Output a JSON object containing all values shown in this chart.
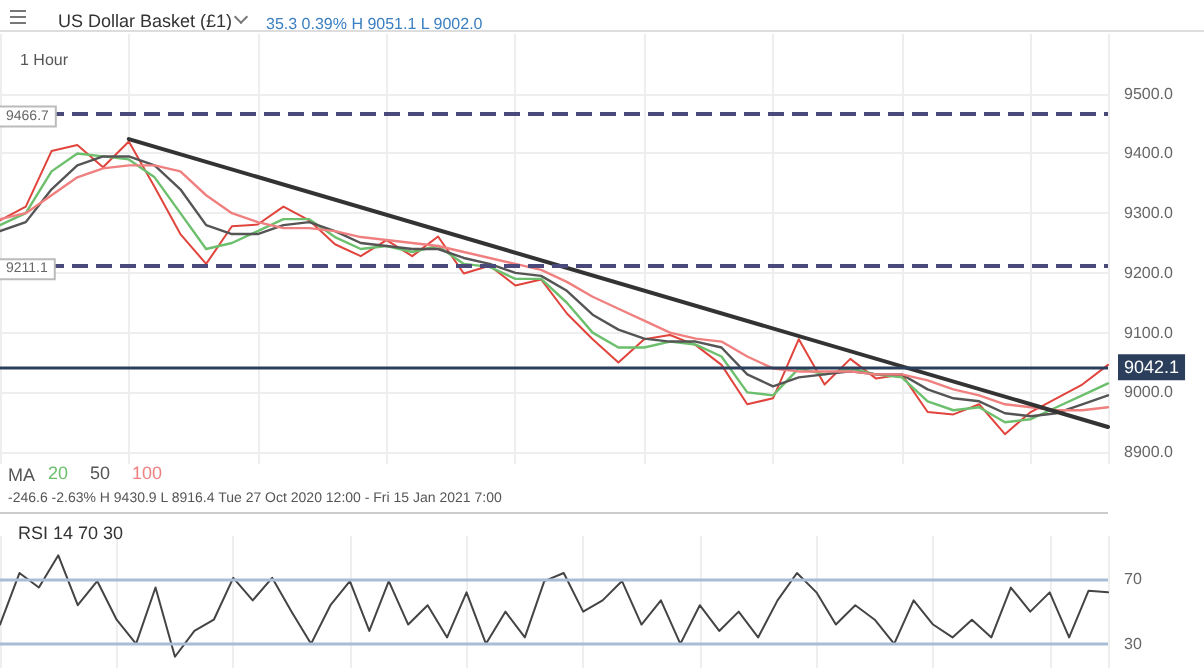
{
  "chart_data": [
    {
      "type": "line",
      "title": "US Dollar Basket (£1)",
      "subtitle": "35.3 0.39% H 9051.1 L 9002.0",
      "legend_title": "MA",
      "annotations": [
        "1 Hour",
        "-246.6 -2.63% H 9430.9 L 8916.4 Tue 27 Oct 2020 12:00 - Fri 15 Jan 2021 7:00"
      ],
      "categories": [
        null,
        null,
        null,
        null,
        null,
        null,
        null,
        null,
        null,
        null,
        null,
        null,
        null,
        null,
        null,
        null,
        null,
        null,
        null,
        null,
        null,
        null,
        null,
        null,
        null,
        null,
        null,
        null,
        null,
        null,
        null,
        null,
        null,
        null,
        null,
        null,
        null,
        null,
        null,
        null,
        null,
        null,
        null,
        null
      ],
      "series": [
        {
          "color": "#e0443c",
          "values": [
            9288,
            9311,
            9404,
            9414,
            9377,
            9420,
            9344,
            9265,
            9215,
            9278,
            9281,
            9311,
            9288,
            9248,
            9228,
            9255,
            9228,
            9261,
            9199,
            9212,
            9179,
            9189,
            9132,
            9089,
            9050,
            9089,
            9096,
            9079,
            9046,
            8980,
            8990,
            9089,
            9013,
            9056,
            9023,
            9030,
            8967,
            8963,
            8980,
            8930,
            8967,
            8990,
            9013,
            9046
          ]
        },
        {
          "name": "20",
          "color": "#6cbf6c",
          "values": [
            9280,
            9300,
            9370,
            9400,
            9395,
            9390,
            9360,
            9300,
            9240,
            9250,
            9270,
            9290,
            9290,
            9260,
            9240,
            9245,
            9235,
            9245,
            9215,
            9210,
            9190,
            9190,
            9150,
            9100,
            9075,
            9075,
            9085,
            9080,
            9060,
            9000,
            8995,
            9040,
            9030,
            9040,
            9030,
            9025,
            8985,
            8970,
            8975,
            8950,
            8955,
            8975,
            8995,
            9015
          ]
        },
        {
          "name": "50",
          "color": "#555555",
          "values": [
            9270,
            9285,
            9340,
            9380,
            9395,
            9395,
            9380,
            9340,
            9280,
            9265,
            9265,
            9280,
            9285,
            9270,
            9250,
            9245,
            9240,
            9240,
            9225,
            9215,
            9200,
            9195,
            9170,
            9130,
            9105,
            9090,
            9085,
            9085,
            9075,
            9030,
            9010,
            9025,
            9030,
            9035,
            9030,
            9030,
            9005,
            8990,
            8985,
            8965,
            8960,
            8965,
            8980,
            8995
          ]
        },
        {
          "name": "100",
          "color": "#f08080",
          "values": [
            9290,
            9300,
            9330,
            9360,
            9375,
            9380,
            9380,
            9370,
            9330,
            9300,
            9285,
            9275,
            9275,
            9270,
            9260,
            9255,
            9250,
            9245,
            9235,
            9225,
            9215,
            9205,
            9185,
            9160,
            9140,
            9120,
            9100,
            9090,
            9085,
            9060,
            9040,
            9035,
            9035,
            9035,
            9030,
            9030,
            9020,
            9005,
            8995,
            8980,
            8975,
            8970,
            8970,
            8975
          ]
        },
        {
          "color": "#333333",
          "values": [
            null,
            null,
            null,
            null,
            null,
            9424,
            null,
            null,
            null,
            null,
            null,
            null,
            null,
            null,
            null,
            null,
            null,
            null,
            null,
            null,
            null,
            null,
            null,
            null,
            null,
            null,
            null,
            null,
            null,
            null,
            null,
            null,
            null,
            null,
            null,
            null,
            null,
            null,
            null,
            null,
            null,
            null,
            null,
            8942
          ]
        }
      ],
      "ylim": [
        8880,
        9600
      ],
      "yticks": [
        {
          "value": 8900,
          "label": "8900.0"
        },
        {
          "value": 9000,
          "label": "9000.0"
        },
        {
          "value": 9100,
          "label": "9100.0"
        },
        {
          "value": 9200,
          "label": "9200.0"
        },
        {
          "value": 9300,
          "label": "9300.0"
        },
        {
          "value": 9400,
          "label": "9400.0"
        },
        {
          "value": 9500,
          "label": "9500.0"
        }
      ],
      "ref_lines": [
        {
          "axis": "y",
          "value": 9466.7,
          "label": "9466.7",
          "color": "#4a4a7a",
          "line_style": "dashed"
        },
        {
          "axis": "y",
          "value": 9211.1,
          "label": "9211.1",
          "color": "#4a4a7a",
          "line_style": "dashed"
        },
        {
          "axis": "y",
          "value": 9042.1,
          "label": "9042.1",
          "color": "#2b3f5c",
          "line_style": "solid"
        }
      ],
      "grid": true,
      "legend": "bottom left",
      "tick_labels": "y",
      "marker": "none"
    },
    {
      "type": "line",
      "title": "RSI 14 70 30",
      "categories": [
        null,
        null,
        null,
        null,
        null,
        null,
        null,
        null,
        null,
        null,
        null,
        null,
        null,
        null,
        null,
        null,
        null,
        null,
        null,
        null,
        null,
        null,
        null,
        null,
        null,
        null,
        null,
        null,
        null,
        null,
        null,
        null,
        null,
        null,
        null,
        null,
        null,
        null,
        null,
        null,
        null,
        null,
        null,
        null,
        null,
        null,
        null,
        null,
        null,
        null,
        null,
        null,
        null,
        null,
        null,
        null,
        null,
        null
      ],
      "values": [
        42,
        74,
        65,
        85,
        54,
        69,
        45,
        30,
        65,
        22,
        38,
        45,
        71,
        57,
        71,
        50,
        30,
        54,
        69,
        38,
        69,
        42,
        54,
        34,
        62,
        30,
        50,
        34,
        69,
        74,
        50,
        57,
        69,
        42,
        57,
        30,
        54,
        38,
        50,
        34,
        57,
        74,
        62,
        42,
        54,
        45,
        30,
        57,
        42,
        34,
        45,
        34,
        65,
        50,
        62,
        34,
        63,
        62
      ],
      "color": "#444444",
      "ylim": [
        15,
        97
      ],
      "yticks": [
        30,
        70
      ],
      "ref_lines": [
        {
          "axis": "y",
          "value": 70,
          "color": "#a9bcd6",
          "line_style": "solid"
        },
        {
          "axis": "y",
          "value": 30,
          "color": "#a9bcd6",
          "line_style": "solid"
        }
      ],
      "grid": "x",
      "tick_labels": "y",
      "marker": "none"
    }
  ]
}
